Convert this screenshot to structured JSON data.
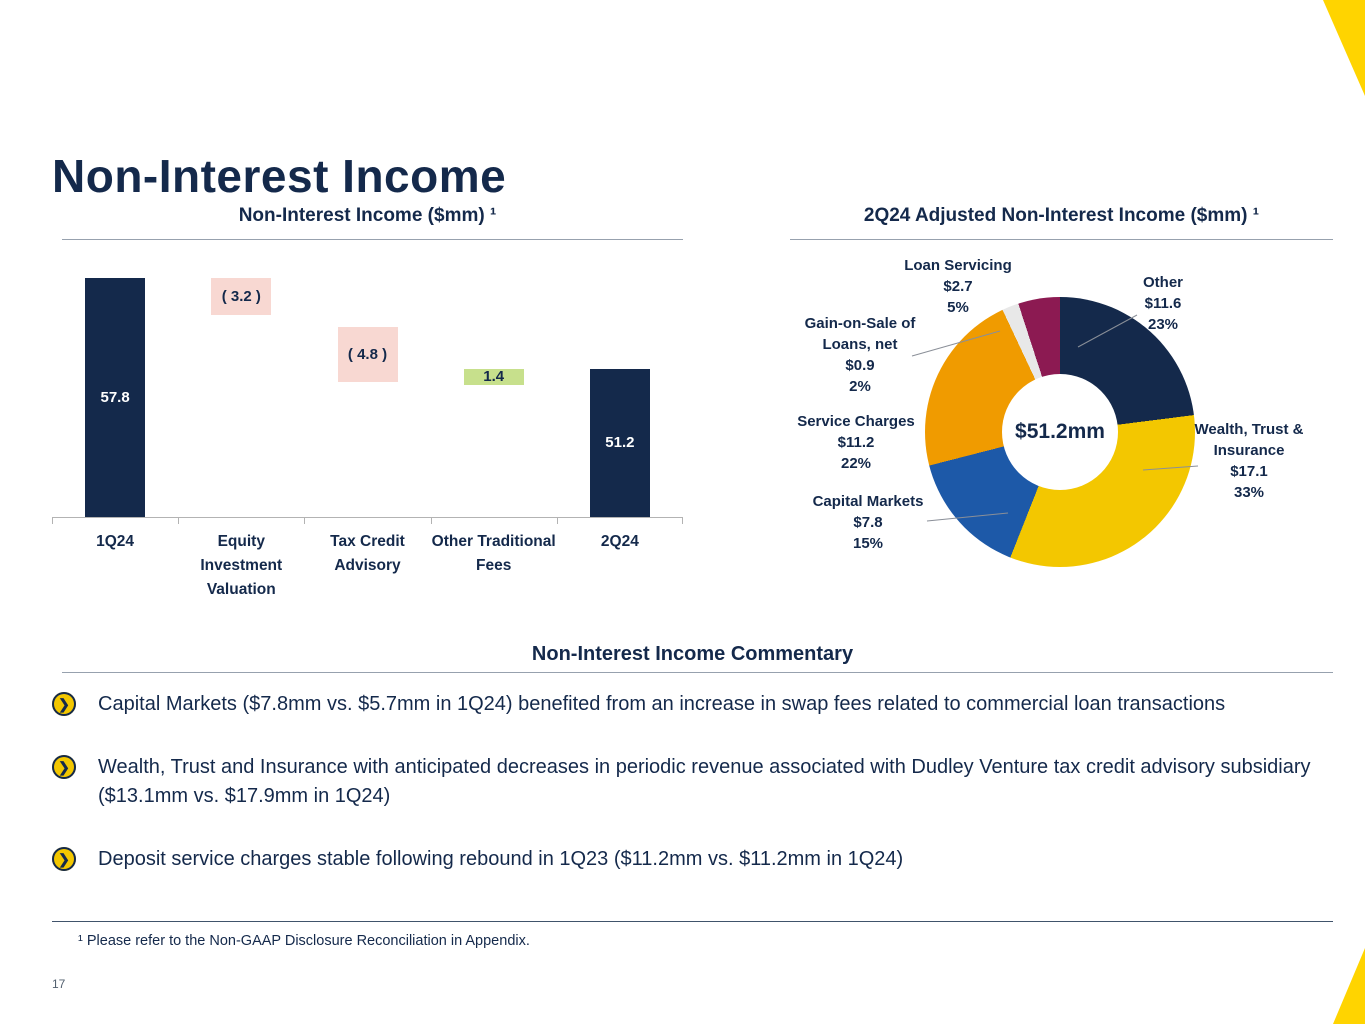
{
  "slide": {
    "title": "Non-Interest Income",
    "page_number": "17",
    "footnote": "¹ Please refer to the Non-GAAP Disclosure Reconciliation in Appendix."
  },
  "colors": {
    "navy": "#14294B",
    "accent_yellow": "#FFD400",
    "waterfall_decrease_pink": "#F8D8D2",
    "waterfall_increase_green": "#C7E08C",
    "donut_yellow": "#F3C700",
    "donut_blue": "#1D59A8",
    "donut_orange": "#F09B00",
    "donut_gray": "#E8E8E8",
    "donut_maroon": "#8C1A52"
  },
  "icons": {
    "bullet_arrow": "❯"
  },
  "chart_data": [
    {
      "type": "bar",
      "subtype": "waterfall",
      "title": "Non-Interest Income ($mm) ¹",
      "categories": [
        "1Q24",
        "Equity Investment Valuation",
        "Tax Credit Advisory",
        "Other Traditional Fees",
        "2Q24"
      ],
      "values": [
        57.8,
        -3.2,
        -4.8,
        1.4,
        51.2
      ],
      "labels": [
        "57.8",
        "( 3.2 )",
        "( 4.8 )",
        "1.4",
        "51.2"
      ],
      "bar_colors": [
        "#14294B",
        "#F8D8D2",
        "#F8D8D2",
        "#C7E08C",
        "#14294B"
      ],
      "label_colors": [
        "#FFFFFF",
        "#14294B",
        "#14294B",
        "#14294B",
        "#FFFFFF"
      ],
      "xlabel": "",
      "ylabel": "",
      "ylim": [
        0,
        60
      ],
      "grid": false,
      "legend": "none"
    },
    {
      "type": "pie",
      "subtype": "donut",
      "title": "2Q24 Adjusted Non-Interest Income ($mm) ¹",
      "center_label": "$51.2mm",
      "segments": [
        {
          "name": "Other",
          "value": 11.6,
          "pct": 23,
          "color": "#14294B"
        },
        {
          "name": "Wealth, Trust & Insurance",
          "value": 17.1,
          "pct": 33,
          "color": "#F3C700"
        },
        {
          "name": "Capital Markets",
          "value": 7.8,
          "pct": 15,
          "color": "#1D59A8"
        },
        {
          "name": "Service Charges",
          "value": 11.2,
          "pct": 22,
          "color": "#F09B00"
        },
        {
          "name": "Gain-on-Sale of Loans, net",
          "value": 0.9,
          "pct": 2,
          "color": "#E8E8E8"
        },
        {
          "name": "Loan Servicing",
          "value": 2.7,
          "pct": 5,
          "color": "#8C1A52"
        }
      ],
      "callouts": [
        "Loan Servicing\n$2.7\n5%",
        "Other\n$11.6\n23%",
        "Gain-on-Sale of\nLoans, net\n$0.9\n2%",
        "Service Charges\n$11.2\n22%",
        "Capital Markets\n$7.8\n15%",
        "Wealth, Trust &\nInsurance\n$17.1\n33%"
      ],
      "legend": "callouts"
    }
  ],
  "commentary": {
    "title": "Non-Interest Income Commentary",
    "bullets": [
      "Capital Markets ($7.8mm vs. $5.7mm in 1Q24) benefited from an increase in swap fees related to commercial loan transactions",
      "Wealth, Trust and Insurance with anticipated decreases in periodic revenue associated with Dudley Venture tax credit advisory subsidiary ($13.1mm vs. $17.9mm in 1Q24)",
      "Deposit service charges stable following rebound in 1Q23 ($11.2mm vs. $11.2mm in 1Q24)"
    ]
  }
}
